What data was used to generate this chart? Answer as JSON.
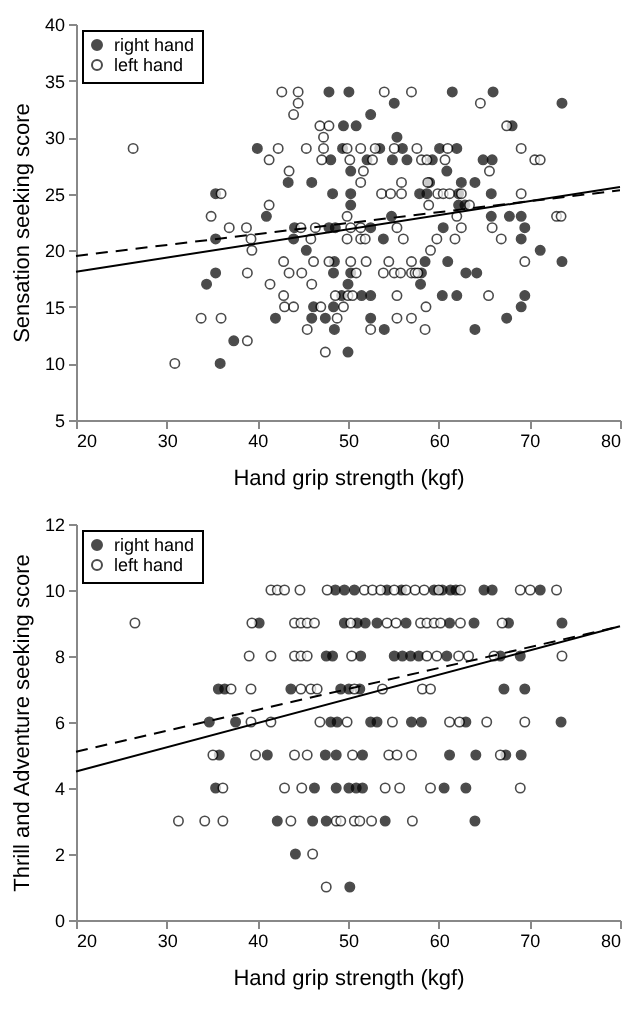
{
  "chart_data": [
    {
      "type": "scatter",
      "xlabel": "Hand grip strength (kgf)",
      "ylabel": "Sensation seeking score",
      "xlim": [
        20,
        80
      ],
      "xticks": [
        20,
        30,
        40,
        50,
        60,
        70,
        80
      ],
      "ylim": [
        5,
        40
      ],
      "yticks": [
        5,
        10,
        15,
        20,
        25,
        30,
        35,
        40
      ],
      "grid": false,
      "legend": "top left",
      "marker": "circle",
      "series": [
        {
          "name": "right hand",
          "color": "#000000",
          "x": [
            47.9,
            50.1,
            61.5,
            66.0,
            55.1,
            73.6,
            52.5,
            49.5,
            50.9,
            68.1,
            55.4,
            40.0,
            49.4,
            53.5,
            56.0,
            60.1,
            62.0,
            48.1,
            52.1,
            54.9,
            56.5,
            59.3,
            64.9,
            65.9,
            50.3,
            60.9,
            43.4,
            46.0,
            59.0,
            62.5,
            64.0,
            35.4,
            48.3,
            50.3,
            57.9,
            58.7,
            62.2,
            65.8,
            50.3,
            62.2,
            62.9,
            41.0,
            54.8,
            65.8,
            67.8,
            69.1,
            44.1,
            47.9,
            48.6,
            52.5,
            60.5,
            69.5,
            35.4,
            44.0,
            53.9,
            69.1,
            45.4,
            71.2,
            48.5,
            58.5,
            61.0,
            73.6,
            35.4,
            48.4,
            50.3,
            58.1,
            63.0,
            64.2,
            34.4,
            50.0,
            58.0,
            49.3,
            51.5,
            52.5,
            60.4,
            62.0,
            69.5,
            46.2,
            48.4,
            69.1,
            42.0,
            46.0,
            47.5,
            52.5,
            67.5,
            48.5,
            54.0,
            64.0,
            37.4,
            50.0,
            35.9
          ],
          "values": [
            34,
            34,
            34,
            34,
            33,
            33,
            32,
            31,
            31,
            31,
            30,
            29,
            29,
            29,
            29,
            29,
            29,
            28,
            28,
            28,
            28,
            28,
            28,
            28,
            27,
            27,
            26,
            26,
            26,
            26,
            26,
            25,
            25,
            25,
            25,
            25,
            25,
            25,
            24,
            24,
            24,
            23,
            23,
            23,
            23,
            23,
            22,
            22,
            22,
            22,
            22,
            22,
            21,
            21,
            21,
            21,
            20,
            20,
            19,
            19,
            19,
            19,
            18,
            18,
            18,
            18,
            18,
            18,
            17,
            17,
            17,
            16,
            16,
            16,
            16,
            16,
            16,
            15,
            15,
            15,
            14,
            14,
            14,
            14,
            14,
            13,
            13,
            13,
            12,
            11,
            10
          ]
        },
        {
          "name": "left hand",
          "color": "#ffffff",
          "x": [
            42.7,
            44.5,
            54.0,
            57.0,
            44.5,
            64.6,
            44.0,
            46.9,
            47.9,
            67.5,
            47.3,
            26.3,
            42.3,
            45.4,
            47.3,
            49.9,
            51.4,
            53.0,
            55.1,
            57.6,
            61.0,
            69.1,
            41.3,
            47.1,
            50.2,
            52.7,
            58.1,
            58.7,
            60.7,
            70.6,
            71.2,
            43.5,
            51.7,
            65.6,
            51.4,
            55.9,
            58.8,
            36.0,
            53.7,
            54.7,
            55.9,
            59.9,
            60.5,
            61.2,
            62.5,
            69.1,
            41.3,
            58.9,
            63.4,
            34.9,
            49.9,
            62.0,
            73.0,
            73.5,
            36.9,
            38.8,
            44.8,
            46.4,
            50.3,
            51.4,
            55.4,
            62.5,
            65.9,
            39.3,
            45.9,
            49.9,
            51.4,
            51.9,
            56.1,
            59.8,
            61.8,
            66.9,
            39.4,
            59.1,
            42.9,
            46.2,
            47.9,
            50.3,
            52.0,
            54.5,
            57.0,
            69.5,
            38.9,
            43.5,
            44.9,
            50.9,
            53.9,
            55.1,
            55.8,
            57.0,
            57.4,
            57.7,
            41.4,
            46.0,
            42.9,
            48.6,
            50.0,
            50.5,
            55.4,
            65.5,
            43.0,
            44.0,
            47.0,
            49.5,
            58.6,
            33.8,
            36.0,
            48.8,
            55.4,
            57.0,
            45.5,
            52.5,
            58.5,
            38.9,
            47.5,
            30.9
          ],
          "values": [
            34,
            34,
            34,
            34,
            33,
            33,
            32,
            31,
            31,
            31,
            30,
            29,
            29,
            29,
            29,
            29,
            29,
            29,
            29,
            29,
            29,
            29,
            28,
            28,
            28,
            28,
            28,
            28,
            28,
            28,
            28,
            27,
            27,
            27,
            26,
            26,
            26,
            25,
            25,
            25,
            25,
            25,
            25,
            25,
            25,
            25,
            24,
            24,
            24,
            23,
            23,
            23,
            23,
            23,
            22,
            22,
            22,
            22,
            22,
            22,
            22,
            22,
            22,
            21,
            21,
            21,
            21,
            21,
            21,
            21,
            21,
            21,
            20,
            20,
            19,
            19,
            19,
            19,
            19,
            19,
            19,
            19,
            18,
            18,
            18,
            18,
            18,
            18,
            18,
            18,
            18,
            18,
            17,
            17,
            16,
            16,
            16,
            16,
            16,
            16,
            15,
            15,
            15,
            15,
            15,
            14,
            14,
            14,
            14,
            14,
            13,
            13,
            13,
            12,
            11,
            10
          ]
        },
        {
          "type": "line",
          "color": "#000000",
          "line_style": "solid",
          "marker": "none",
          "x": [
            20,
            80
          ],
          "values": [
            18.1,
            25.6
          ]
        },
        {
          "type": "line",
          "color": "#000000",
          "line_style": "dashed",
          "marker": "none",
          "x": [
            20,
            80
          ],
          "values": [
            19.5,
            25.3
          ]
        }
      ]
    },
    {
      "type": "scatter",
      "xlabel": "Hand grip strength (kgf)",
      "ylabel": "Thrill and Adventure seeking score",
      "xlim": [
        20,
        80
      ],
      "xticks": [
        20,
        30,
        40,
        50,
        60,
        70,
        80
      ],
      "ylim": [
        0,
        12
      ],
      "yticks": [
        0,
        2,
        4,
        6,
        8,
        10,
        12
      ],
      "grid": false,
      "legend": "top left",
      "marker": "circle",
      "series": [
        {
          "name": "right hand",
          "color": "#000000",
          "x": [
            48.6,
            49.6,
            50.7,
            54.3,
            55.9,
            59.5,
            60.4,
            61.3,
            61.9,
            65.0,
            65.9,
            71.2,
            40.2,
            49.6,
            51.0,
            51.9,
            53.2,
            56.4,
            61.2,
            63.9,
            67.7,
            73.6,
            47.6,
            48.3,
            51.4,
            55.1,
            56.0,
            56.9,
            57.8,
            60.9,
            66.8,
            69.0,
            35.7,
            36.4,
            43.7,
            49.2,
            50.1,
            51.3,
            67.2,
            69.5,
            34.7,
            37.6,
            48.1,
            48.8,
            52.5,
            53.2,
            57.0,
            58.1,
            63.0,
            73.5,
            35.8,
            41.1,
            47.5,
            48.7,
            51.6,
            61.2,
            64.1,
            67.4,
            69.1,
            35.4,
            46.3,
            48.7,
            50.1,
            50.9,
            51.6,
            60.6,
            63.0,
            42.2,
            46.1,
            47.6,
            54.1,
            64.0,
            44.2,
            50.2
          ],
          "values": [
            10,
            10,
            10,
            10,
            10,
            10,
            10,
            10,
            10,
            10,
            10,
            10,
            9,
            9,
            9,
            9,
            9,
            9,
            9,
            9,
            9,
            9,
            8,
            8,
            8,
            8,
            8,
            8,
            8,
            8,
            8,
            8,
            7,
            7,
            7,
            7,
            7,
            7,
            7,
            7,
            6,
            6,
            6,
            6,
            6,
            6,
            6,
            6,
            6,
            6,
            5,
            5,
            5,
            5,
            5,
            5,
            5,
            5,
            5,
            4,
            4,
            4,
            4,
            4,
            4,
            4,
            4,
            3,
            3,
            3,
            3,
            3,
            2,
            1
          ]
        },
        {
          "name": "left hand",
          "color": "#ffffff",
          "x": [
            41.5,
            42.2,
            43.0,
            44.7,
            47.7,
            51.8,
            52.7,
            53.6,
            55.1,
            56.4,
            57.4,
            58.4,
            60.0,
            62.4,
            69.0,
            70.1,
            73.0,
            26.5,
            39.4,
            44.1,
            44.8,
            45.5,
            46.3,
            50.3,
            54.3,
            55.3,
            58.0,
            58.7,
            59.5,
            60.2,
            62.4,
            67.0,
            39.1,
            41.5,
            44.1,
            44.8,
            45.5,
            50.4,
            58.7,
            59.8,
            62.2,
            63.3,
            66.1,
            73.6,
            37.1,
            39.3,
            44.8,
            45.9,
            46.6,
            50.7,
            53.8,
            58.2,
            59.1,
            39.3,
            41.5,
            46.9,
            49.9,
            54.9,
            61.2,
            62.3,
            65.3,
            69.5,
            35.1,
            39.8,
            44.1,
            45.5,
            50.5,
            54.5,
            55.4,
            57.0,
            66.8,
            36.2,
            43.0,
            44.9,
            54.1,
            55.7,
            59.1,
            69.0,
            31.3,
            34.2,
            36.2,
            43.7,
            48.7,
            49.2,
            50.7,
            51.3,
            52.6,
            57.1,
            46.1,
            47.6
          ],
          "values": [
            10,
            10,
            10,
            10,
            10,
            10,
            10,
            10,
            10,
            10,
            10,
            10,
            10,
            10,
            10,
            10,
            10,
            9,
            9,
            9,
            9,
            9,
            9,
            9,
            9,
            9,
            9,
            9,
            9,
            9,
            9,
            9,
            8,
            8,
            8,
            8,
            8,
            8,
            8,
            8,
            8,
            8,
            8,
            8,
            7,
            7,
            7,
            7,
            7,
            7,
            7,
            7,
            7,
            6,
            6,
            6,
            6,
            6,
            6,
            6,
            6,
            6,
            5,
            5,
            5,
            5,
            5,
            5,
            5,
            5,
            5,
            4,
            4,
            4,
            4,
            4,
            4,
            4,
            3,
            3,
            3,
            3,
            3,
            3,
            3,
            3,
            3,
            3,
            2,
            1
          ]
        },
        {
          "type": "line",
          "color": "#000000",
          "line_style": "solid",
          "marker": "none",
          "x": [
            20,
            80
          ],
          "values": [
            4.5,
            8.9
          ]
        },
        {
          "type": "line",
          "color": "#000000",
          "line_style": "dashed",
          "marker": "none",
          "x": [
            20,
            80
          ],
          "values": [
            5.1,
            8.9
          ]
        }
      ]
    }
  ]
}
